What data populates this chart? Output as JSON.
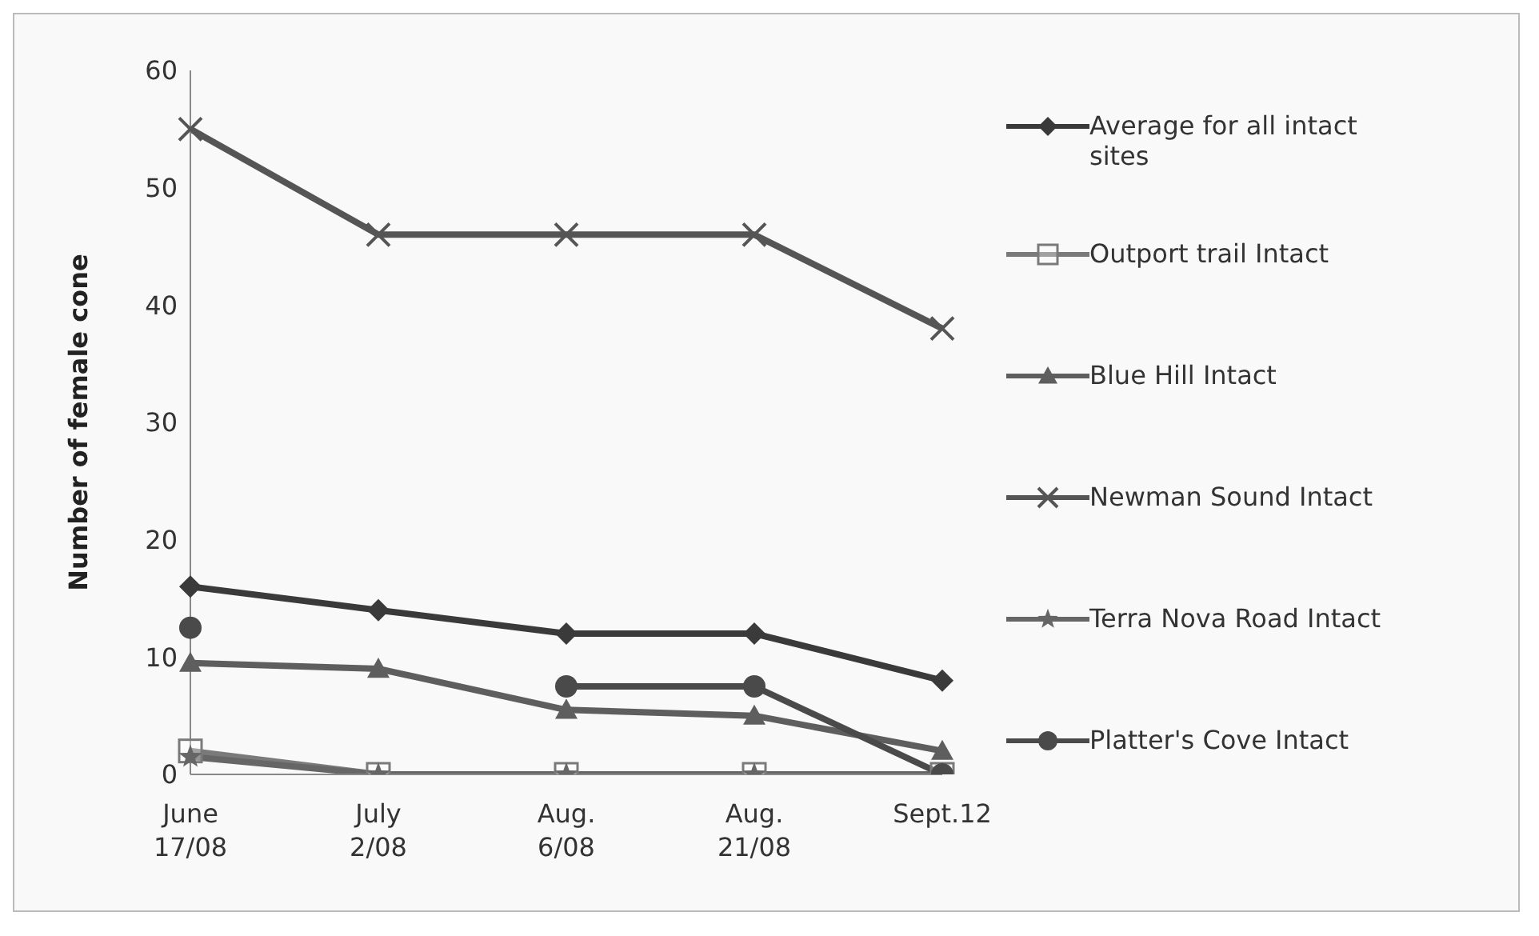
{
  "chart_data": {
    "type": "line",
    "ylabel": "Number of female cone",
    "categories": [
      "June 17/08",
      "July 2/08",
      "Aug. 6/08",
      "Aug. 21/08",
      "Sept.12"
    ],
    "ylim": [
      0,
      60
    ],
    "yticks": [
      0,
      10,
      20,
      30,
      40,
      50,
      60
    ],
    "legend": "right",
    "series": [
      {
        "name": "Average for all intact sites",
        "color": "#3a3a3a",
        "marker": "diamond",
        "values": [
          16,
          14,
          12,
          12,
          8
        ]
      },
      {
        "name": "Outport trail Intact",
        "color": "#7a7a7a",
        "marker": "square",
        "values": [
          2,
          0,
          0,
          0,
          0
        ]
      },
      {
        "name": "Blue Hill Intact",
        "color": "#5e5e5e",
        "marker": "triangle",
        "values": [
          9.5,
          9,
          5.5,
          5,
          2
        ]
      },
      {
        "name": "Newman Sound Intact",
        "color": "#555555",
        "marker": "cross",
        "values": [
          55,
          46,
          46,
          46,
          38
        ]
      },
      {
        "name": "Terra Nova Road Intact",
        "color": "#666666",
        "marker": "star",
        "values": [
          1.5,
          0,
          0,
          0,
          0
        ]
      },
      {
        "name": "Platter's Cove Intact",
        "color": "#4a4a4a",
        "marker": "circle",
        "values": [
          12.5,
          null,
          7.5,
          7.5,
          0
        ]
      }
    ]
  }
}
